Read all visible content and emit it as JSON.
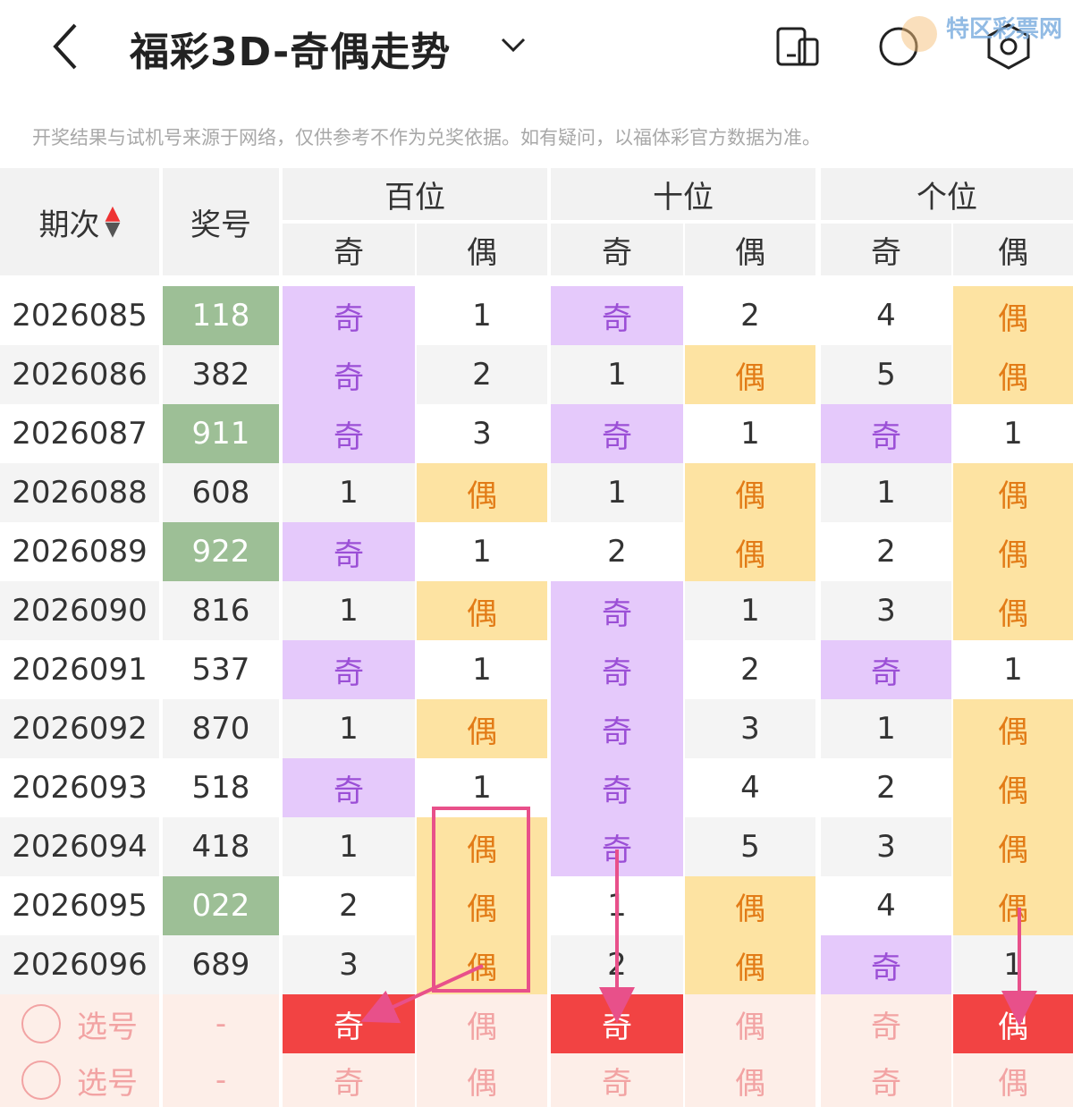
{
  "header": {
    "title": "福彩3D-奇偶走势",
    "watermark": "特区彩票网"
  },
  "notice": "开奖结果与试机号来源于网络，仅供参考不作为兑奖依据。如有疑问，以福体彩官方数据为准。",
  "table": {
    "columns": [
      "期次",
      "奖号"
    ],
    "groups": [
      "百位",
      "十位",
      "个位"
    ],
    "subcolumns": [
      "奇",
      "偶"
    ],
    "rows": [
      [
        "2026085",
        "118",
        "奇",
        "1",
        "奇",
        "2",
        "4",
        "偶"
      ],
      [
        "2026086",
        "382",
        "奇",
        "2",
        "1",
        "偶",
        "5",
        "偶"
      ],
      [
        "2026087",
        "911",
        "奇",
        "3",
        "奇",
        "1",
        "奇",
        "1"
      ],
      [
        "2026088",
        "608",
        "1",
        "偶",
        "1",
        "偶",
        "1",
        "偶"
      ],
      [
        "2026089",
        "922",
        "奇",
        "1",
        "2",
        "偶",
        "2",
        "偶"
      ],
      [
        "2026090",
        "816",
        "1",
        "偶",
        "奇",
        "1",
        "3",
        "偶"
      ],
      [
        "2026091",
        "537",
        "奇",
        "1",
        "奇",
        "2",
        "奇",
        "1"
      ],
      [
        "2026092",
        "870",
        "1",
        "偶",
        "奇",
        "3",
        "1",
        "偶"
      ],
      [
        "2026093",
        "518",
        "奇",
        "1",
        "奇",
        "4",
        "2",
        "偶"
      ],
      [
        "2026094",
        "418",
        "1",
        "偶",
        "奇",
        "5",
        "3",
        "偶"
      ],
      [
        "2026095",
        "022",
        "2",
        "偶",
        "1",
        "偶",
        "4",
        "偶"
      ],
      [
        "2026096",
        "689",
        "3",
        "偶",
        "2",
        "偶",
        "奇",
        "1"
      ]
    ],
    "pick_rows": [
      [
        "选号",
        "-",
        "奇",
        "偶",
        "奇",
        "偶",
        "奇",
        "偶"
      ],
      [
        "选号",
        "-",
        "奇",
        "偶",
        "奇",
        "偶",
        "奇",
        "偶"
      ]
    ]
  }
}
